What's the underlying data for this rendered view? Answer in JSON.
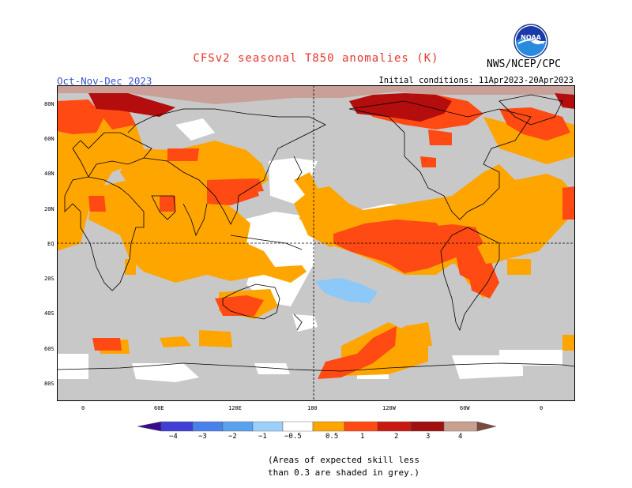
{
  "title": "CFSv2 seasonal T850 anomalies (K)",
  "season": "Oct-Nov-Dec 2023",
  "initial_conditions": "Initial conditions: 11Apr2023-20Apr2023",
  "agency": "NWS/NCEP/CPC",
  "logo": {
    "icon": "noaa-logo",
    "text": "NOAA"
  },
  "lat_labels": [
    "80N",
    "60N",
    "40N",
    "20N",
    "EQ",
    "20S",
    "40S",
    "60S",
    "80S"
  ],
  "lon_labels": [
    "0",
    "60E",
    "120E",
    "180",
    "120W",
    "60W",
    "0"
  ],
  "colorbar": {
    "labels": [
      "−4",
      "−3",
      "−2",
      "−1",
      "−0.5",
      "0.5",
      "1",
      "2",
      "3",
      "4"
    ],
    "colors": [
      "#3a0a8c",
      "#3f3fd6",
      "#4a80ea",
      "#5aa2f0",
      "#9bd0fa",
      "#ffffff",
      "#ffa500",
      "#ff4a14",
      "#c81a10",
      "#a01010",
      "#c8a090",
      "#7a4a40"
    ]
  },
  "colors": {
    "grey_low_skill": "#c8c8c8",
    "orange_0_5_1": "#ffa500",
    "redorange_1_2": "#ff4a14",
    "darkred_2_3": "#b40d0d",
    "pink_3_4": "#c8a098",
    "lightblue": "#8cc8f8"
  },
  "note_line1": "(Areas of expected skill less",
  "note_line2": "than 0.3 are shaded in grey.)"
}
